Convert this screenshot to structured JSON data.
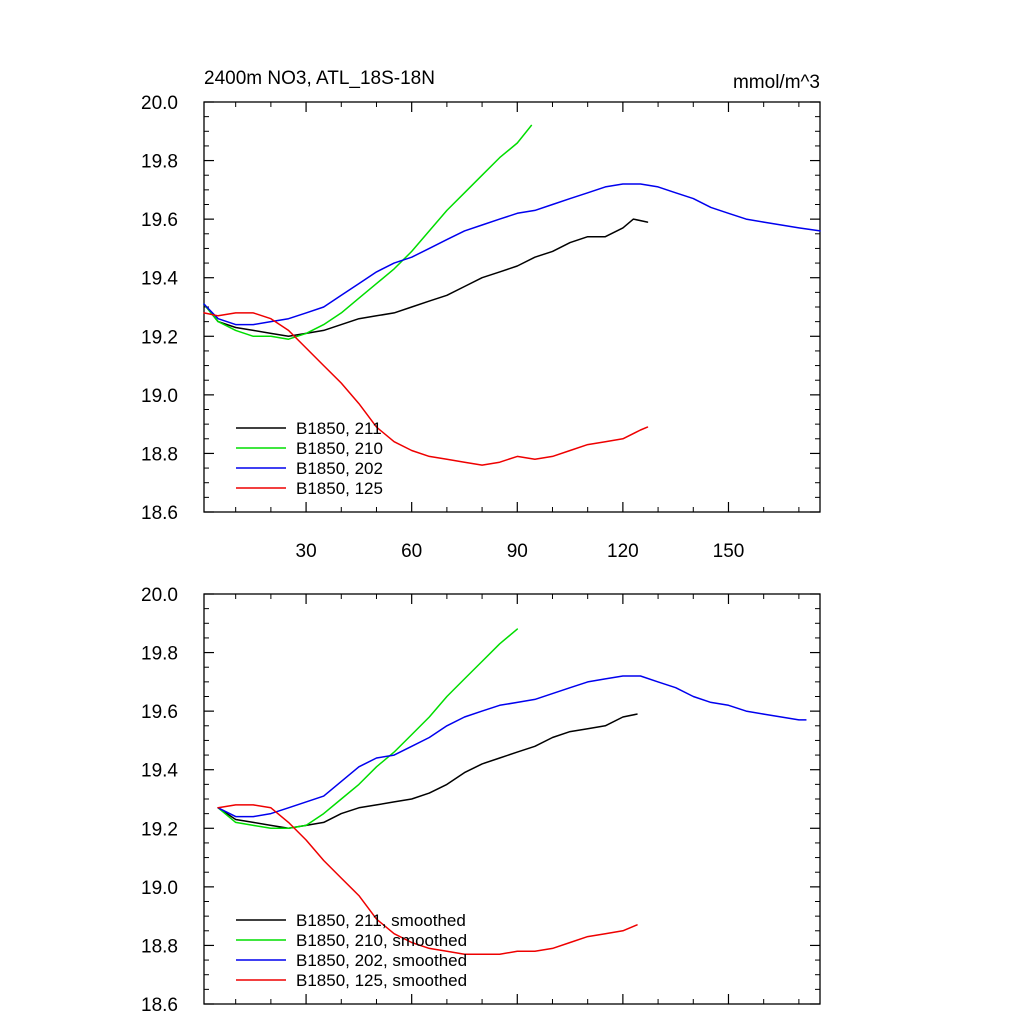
{
  "chart_data": [
    {
      "type": "line",
      "title_left": "2400m NO3, ATL_18S-18N",
      "title_right": "mmol/m^3",
      "xlabel": "",
      "ylabel": "",
      "xlim": [
        1,
        176
      ],
      "ylim": [
        18.6,
        20.0
      ],
      "xticks": [
        30,
        60,
        90,
        120,
        150
      ],
      "yticks": [
        "18.6",
        "18.8",
        "19.0",
        "19.2",
        "19.4",
        "19.6",
        "19.8",
        "20.0"
      ],
      "show_x_tick_labels": true,
      "grid": false,
      "legend_position": "bottom-left",
      "series": [
        {
          "name": "B1850, 211",
          "color": "#000000",
          "x": [
            1,
            5,
            10,
            15,
            20,
            25,
            30,
            35,
            40,
            45,
            50,
            55,
            60,
            65,
            70,
            75,
            80,
            85,
            90,
            95,
            100,
            105,
            110,
            115,
            120,
            123,
            127
          ],
          "y": [
            19.31,
            19.25,
            19.23,
            19.22,
            19.21,
            19.2,
            19.21,
            19.22,
            19.24,
            19.26,
            19.27,
            19.28,
            19.3,
            19.32,
            19.34,
            19.37,
            19.4,
            19.42,
            19.44,
            19.47,
            19.49,
            19.52,
            19.54,
            19.54,
            19.57,
            19.6,
            19.59
          ]
        },
        {
          "name": "B1850, 210",
          "color": "#00dd00",
          "x": [
            1,
            5,
            10,
            15,
            20,
            25,
            30,
            35,
            40,
            45,
            50,
            55,
            60,
            65,
            70,
            75,
            80,
            85,
            90,
            94
          ],
          "y": [
            19.31,
            19.25,
            19.22,
            19.2,
            19.2,
            19.19,
            19.21,
            19.24,
            19.28,
            19.33,
            19.38,
            19.43,
            19.49,
            19.56,
            19.63,
            19.69,
            19.75,
            19.81,
            19.86,
            19.92
          ]
        },
        {
          "name": "B1850, 202",
          "color": "#0000ee",
          "x": [
            1,
            5,
            10,
            15,
            20,
            25,
            30,
            35,
            40,
            45,
            50,
            55,
            60,
            65,
            70,
            75,
            80,
            85,
            90,
            95,
            100,
            105,
            110,
            115,
            120,
            125,
            130,
            135,
            140,
            145,
            150,
            155,
            160,
            165,
            170,
            176
          ],
          "y": [
            19.31,
            19.26,
            19.24,
            19.24,
            19.25,
            19.26,
            19.28,
            19.3,
            19.34,
            19.38,
            19.42,
            19.45,
            19.47,
            19.5,
            19.53,
            19.56,
            19.58,
            19.6,
            19.62,
            19.63,
            19.65,
            19.67,
            19.69,
            19.71,
            19.72,
            19.72,
            19.71,
            19.69,
            19.67,
            19.64,
            19.62,
            19.6,
            19.59,
            19.58,
            19.57,
            19.56
          ]
        },
        {
          "name": "B1850, 125",
          "color": "#ee0000",
          "x": [
            1,
            5,
            10,
            15,
            20,
            25,
            30,
            35,
            40,
            45,
            50,
            55,
            60,
            65,
            70,
            75,
            80,
            85,
            90,
            95,
            100,
            105,
            110,
            115,
            120,
            125,
            127
          ],
          "y": [
            19.28,
            19.27,
            19.28,
            19.28,
            19.26,
            19.22,
            19.16,
            19.1,
            19.04,
            18.97,
            18.89,
            18.84,
            18.81,
            18.79,
            18.78,
            18.77,
            18.76,
            18.77,
            18.79,
            18.78,
            18.79,
            18.81,
            18.83,
            18.84,
            18.85,
            18.88,
            18.89
          ]
        }
      ]
    },
    {
      "type": "line",
      "title_left": "",
      "title_right": "",
      "xlabel": "",
      "ylabel": "",
      "xlim": [
        1,
        176
      ],
      "ylim": [
        18.6,
        20.0
      ],
      "xticks": [
        30,
        60,
        90,
        120,
        150
      ],
      "yticks": [
        "18.6",
        "18.8",
        "19.0",
        "19.2",
        "19.4",
        "19.6",
        "19.8",
        "20.0"
      ],
      "show_x_tick_labels": false,
      "grid": false,
      "legend_position": "bottom-left",
      "series": [
        {
          "name": "B1850, 211, smoothed",
          "color": "#000000",
          "x": [
            5,
            10,
            15,
            20,
            25,
            30,
            35,
            40,
            45,
            50,
            55,
            60,
            65,
            70,
            75,
            80,
            85,
            90,
            95,
            100,
            105,
            110,
            115,
            120,
            124
          ],
          "y": [
            19.27,
            19.23,
            19.22,
            19.21,
            19.2,
            19.21,
            19.22,
            19.25,
            19.27,
            19.28,
            19.29,
            19.3,
            19.32,
            19.35,
            19.39,
            19.42,
            19.44,
            19.46,
            19.48,
            19.51,
            19.53,
            19.54,
            19.55,
            19.58,
            19.59
          ]
        },
        {
          "name": "B1850, 210, smoothed",
          "color": "#00dd00",
          "x": [
            5,
            10,
            15,
            20,
            25,
            30,
            35,
            40,
            45,
            50,
            55,
            60,
            65,
            70,
            75,
            80,
            85,
            90
          ],
          "y": [
            19.27,
            19.22,
            19.21,
            19.2,
            19.2,
            19.21,
            19.25,
            19.3,
            19.35,
            19.41,
            19.46,
            19.52,
            19.58,
            19.65,
            19.71,
            19.77,
            19.83,
            19.88
          ]
        },
        {
          "name": "B1850, 202, smoothed",
          "color": "#0000ee",
          "x": [
            5,
            10,
            15,
            20,
            25,
            30,
            35,
            40,
            45,
            50,
            55,
            60,
            65,
            70,
            75,
            80,
            85,
            90,
            95,
            100,
            105,
            110,
            115,
            120,
            125,
            130,
            135,
            140,
            145,
            150,
            155,
            160,
            165,
            170,
            172
          ],
          "y": [
            19.27,
            19.24,
            19.24,
            19.25,
            19.27,
            19.29,
            19.31,
            19.36,
            19.41,
            19.44,
            19.45,
            19.48,
            19.51,
            19.55,
            19.58,
            19.6,
            19.62,
            19.63,
            19.64,
            19.66,
            19.68,
            19.7,
            19.71,
            19.72,
            19.72,
            19.7,
            19.68,
            19.65,
            19.63,
            19.62,
            19.6,
            19.59,
            19.58,
            19.57,
            19.57
          ]
        },
        {
          "name": "B1850, 125, smoothed",
          "color": "#ee0000",
          "x": [
            5,
            10,
            15,
            20,
            25,
            30,
            35,
            40,
            45,
            50,
            55,
            60,
            65,
            70,
            75,
            80,
            85,
            90,
            95,
            100,
            105,
            110,
            115,
            120,
            124
          ],
          "y": [
            19.27,
            19.28,
            19.28,
            19.27,
            19.22,
            19.16,
            19.09,
            19.03,
            18.97,
            18.89,
            18.84,
            18.81,
            18.79,
            18.78,
            18.77,
            18.77,
            18.77,
            18.78,
            18.78,
            18.79,
            18.81,
            18.83,
            18.84,
            18.85,
            18.87
          ]
        }
      ]
    }
  ]
}
